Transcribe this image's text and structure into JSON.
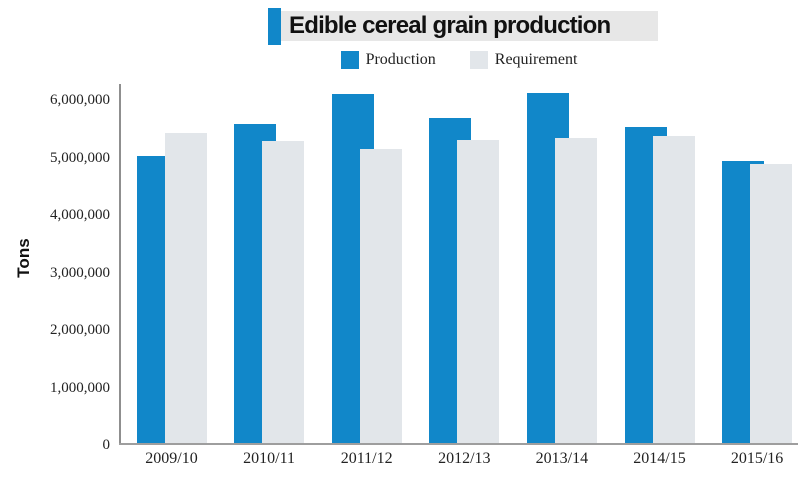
{
  "header": {
    "title": "Edible cereal grain production",
    "accent_color": "#1187c9",
    "band_color": "#e7e7e7"
  },
  "chart_data": {
    "type": "bar",
    "title": "Edible cereal grain production",
    "ylabel": "Tons",
    "xlabel": "",
    "categories": [
      "2009/10",
      "2010/11",
      "2011/12",
      "2012/13",
      "2013/14",
      "2014/15",
      "2015/16"
    ],
    "series": [
      {
        "name": "Production",
        "color": "#1187c9",
        "values": [
          5020000,
          5590000,
          6100000,
          5680000,
          6130000,
          5530000,
          4940000
        ]
      },
      {
        "name": "Requirement",
        "color": "#e2e6ea",
        "values": [
          5420000,
          5280000,
          5140000,
          5300000,
          5340000,
          5370000,
          4880000
        ]
      }
    ],
    "ylim": [
      0,
      6300000
    ],
    "yticks": [
      0,
      1000000,
      2000000,
      3000000,
      4000000,
      5000000,
      6000000
    ],
    "ytick_labels": [
      "0",
      "1,000,000",
      "2,000,000",
      "3,000,000",
      "4,000,000",
      "5,000,000",
      "6,000,000"
    ],
    "grid": false,
    "legend_position": "top",
    "bar_overlap": "Requirement bar drawn in front, overlapping right edge of Production bar"
  }
}
